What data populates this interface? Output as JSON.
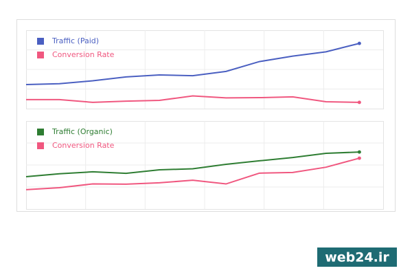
{
  "chart_data": [
    {
      "type": "line",
      "grid": true,
      "x": [
        0,
        0.56,
        1.12,
        1.68,
        2.24,
        2.8,
        3.36,
        3.92,
        4.48,
        5.04,
        5.6
      ],
      "xlim": [
        0,
        6
      ],
      "xticks": [
        1,
        2,
        3,
        4,
        5
      ],
      "ylim": [
        0,
        4
      ],
      "yticks": [
        1,
        2,
        3
      ],
      "series": [
        {
          "name": "Traffic (Paid)",
          "color": "#4a5fc1",
          "values": [
            1.23,
            1.27,
            1.42,
            1.62,
            1.72,
            1.68,
            1.9,
            2.4,
            2.68,
            2.9,
            3.33
          ]
        },
        {
          "name": "Conversion Rate",
          "color": "#f0577f",
          "values": [
            0.46,
            0.46,
            0.32,
            0.38,
            0.42,
            0.65,
            0.55,
            0.56,
            0.6,
            0.35,
            0.32
          ]
        }
      ]
    },
    {
      "type": "line",
      "grid": true,
      "x": [
        0,
        0.56,
        1.12,
        1.68,
        2.24,
        2.8,
        3.36,
        3.92,
        4.48,
        5.04,
        5.6
      ],
      "xlim": [
        0,
        6
      ],
      "xticks": [
        1,
        2,
        3,
        4,
        5
      ],
      "ylim": [
        0,
        4
      ],
      "yticks": [
        1,
        2,
        3
      ],
      "series": [
        {
          "name": "Traffic (Organic)",
          "color": "#2e7d32",
          "values": [
            1.47,
            1.6,
            1.69,
            1.62,
            1.78,
            1.83,
            2.03,
            2.19,
            2.34,
            2.53,
            2.59
          ]
        },
        {
          "name": "Conversion Rate",
          "color": "#f0577f",
          "values": [
            0.88,
            0.97,
            1.14,
            1.13,
            1.19,
            1.31,
            1.14,
            1.63,
            1.66,
            1.9,
            2.31
          ]
        }
      ]
    }
  ],
  "watermark": "web24.ir"
}
